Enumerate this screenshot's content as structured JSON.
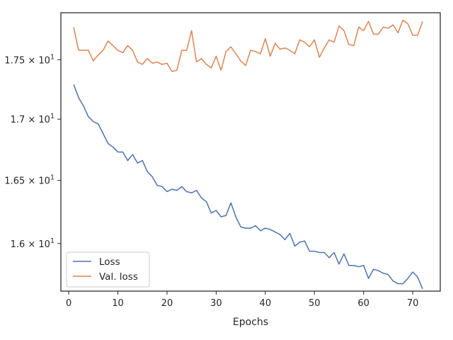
{
  "chart_data": {
    "type": "line",
    "xlabel": "Epochs",
    "ylabel": "",
    "yscale": "log",
    "xlim": [
      -1.6,
      75.6
    ],
    "ylim": [
      15.633,
      17.905
    ],
    "grid": false,
    "legend_position": "lower-left",
    "x_ticks": [
      0,
      10,
      20,
      30,
      40,
      50,
      60,
      70
    ],
    "x_tick_labels": [
      "0",
      "10",
      "20",
      "30",
      "40",
      "50",
      "60",
      "70"
    ],
    "y_ticks": [
      16.0,
      16.5,
      17.0,
      17.5
    ],
    "y_tick_labels": [
      "1.6 × 10^1",
      "1.65 × 10^1",
      "1.7 × 10^1",
      "1.75 × 10^1"
    ],
    "x": [
      1,
      2,
      3,
      4,
      5,
      6,
      7,
      8,
      9,
      10,
      11,
      12,
      13,
      14,
      15,
      16,
      17,
      18,
      19,
      20,
      21,
      22,
      23,
      24,
      25,
      26,
      27,
      28,
      29,
      30,
      31,
      32,
      33,
      34,
      35,
      36,
      37,
      38,
      39,
      40,
      41,
      42,
      43,
      44,
      45,
      46,
      47,
      48,
      49,
      50,
      51,
      52,
      53,
      54,
      55,
      56,
      57,
      58,
      59,
      60,
      61,
      62,
      63,
      64,
      65,
      66,
      67,
      68,
      69,
      70,
      71,
      72
    ],
    "series": [
      {
        "name": "Loss",
        "color": "#4c72b0",
        "values": [
          17.29,
          17.18,
          17.11,
          17.02,
          16.98,
          16.96,
          16.88,
          16.8,
          16.77,
          16.73,
          16.73,
          16.66,
          16.71,
          16.64,
          16.66,
          16.57,
          16.53,
          16.46,
          16.45,
          16.41,
          16.43,
          16.42,
          16.45,
          16.41,
          16.4,
          16.42,
          16.36,
          16.33,
          16.24,
          16.26,
          16.21,
          16.22,
          16.32,
          16.21,
          16.13,
          16.12,
          16.12,
          16.14,
          16.1,
          16.12,
          16.11,
          16.09,
          16.07,
          16.03,
          16.08,
          15.98,
          16.01,
          16.02,
          15.94,
          15.94,
          15.93,
          15.93,
          15.89,
          15.93,
          15.84,
          15.92,
          15.83,
          15.83,
          15.82,
          15.83,
          15.73,
          15.8,
          15.79,
          15.77,
          15.76,
          15.71,
          15.69,
          15.69,
          15.73,
          15.78,
          15.74,
          15.65
        ]
      },
      {
        "name": "Val. loss",
        "color": "#dd8452",
        "values": [
          17.78,
          17.58,
          17.58,
          17.58,
          17.49,
          17.54,
          17.58,
          17.66,
          17.62,
          17.58,
          17.56,
          17.62,
          17.58,
          17.48,
          17.46,
          17.51,
          17.47,
          17.48,
          17.46,
          17.47,
          17.4,
          17.41,
          17.58,
          17.58,
          17.75,
          17.48,
          17.51,
          17.46,
          17.43,
          17.53,
          17.41,
          17.57,
          17.61,
          17.55,
          17.49,
          17.45,
          17.58,
          17.57,
          17.55,
          17.68,
          17.53,
          17.64,
          17.59,
          17.6,
          17.58,
          17.55,
          17.67,
          17.65,
          17.61,
          17.67,
          17.52,
          17.6,
          17.67,
          17.65,
          17.79,
          17.75,
          17.63,
          17.62,
          17.78,
          17.75,
          17.83,
          17.72,
          17.72,
          17.78,
          17.77,
          17.8,
          17.73,
          17.84,
          17.81,
          17.71,
          17.71,
          17.83
        ]
      }
    ]
  }
}
